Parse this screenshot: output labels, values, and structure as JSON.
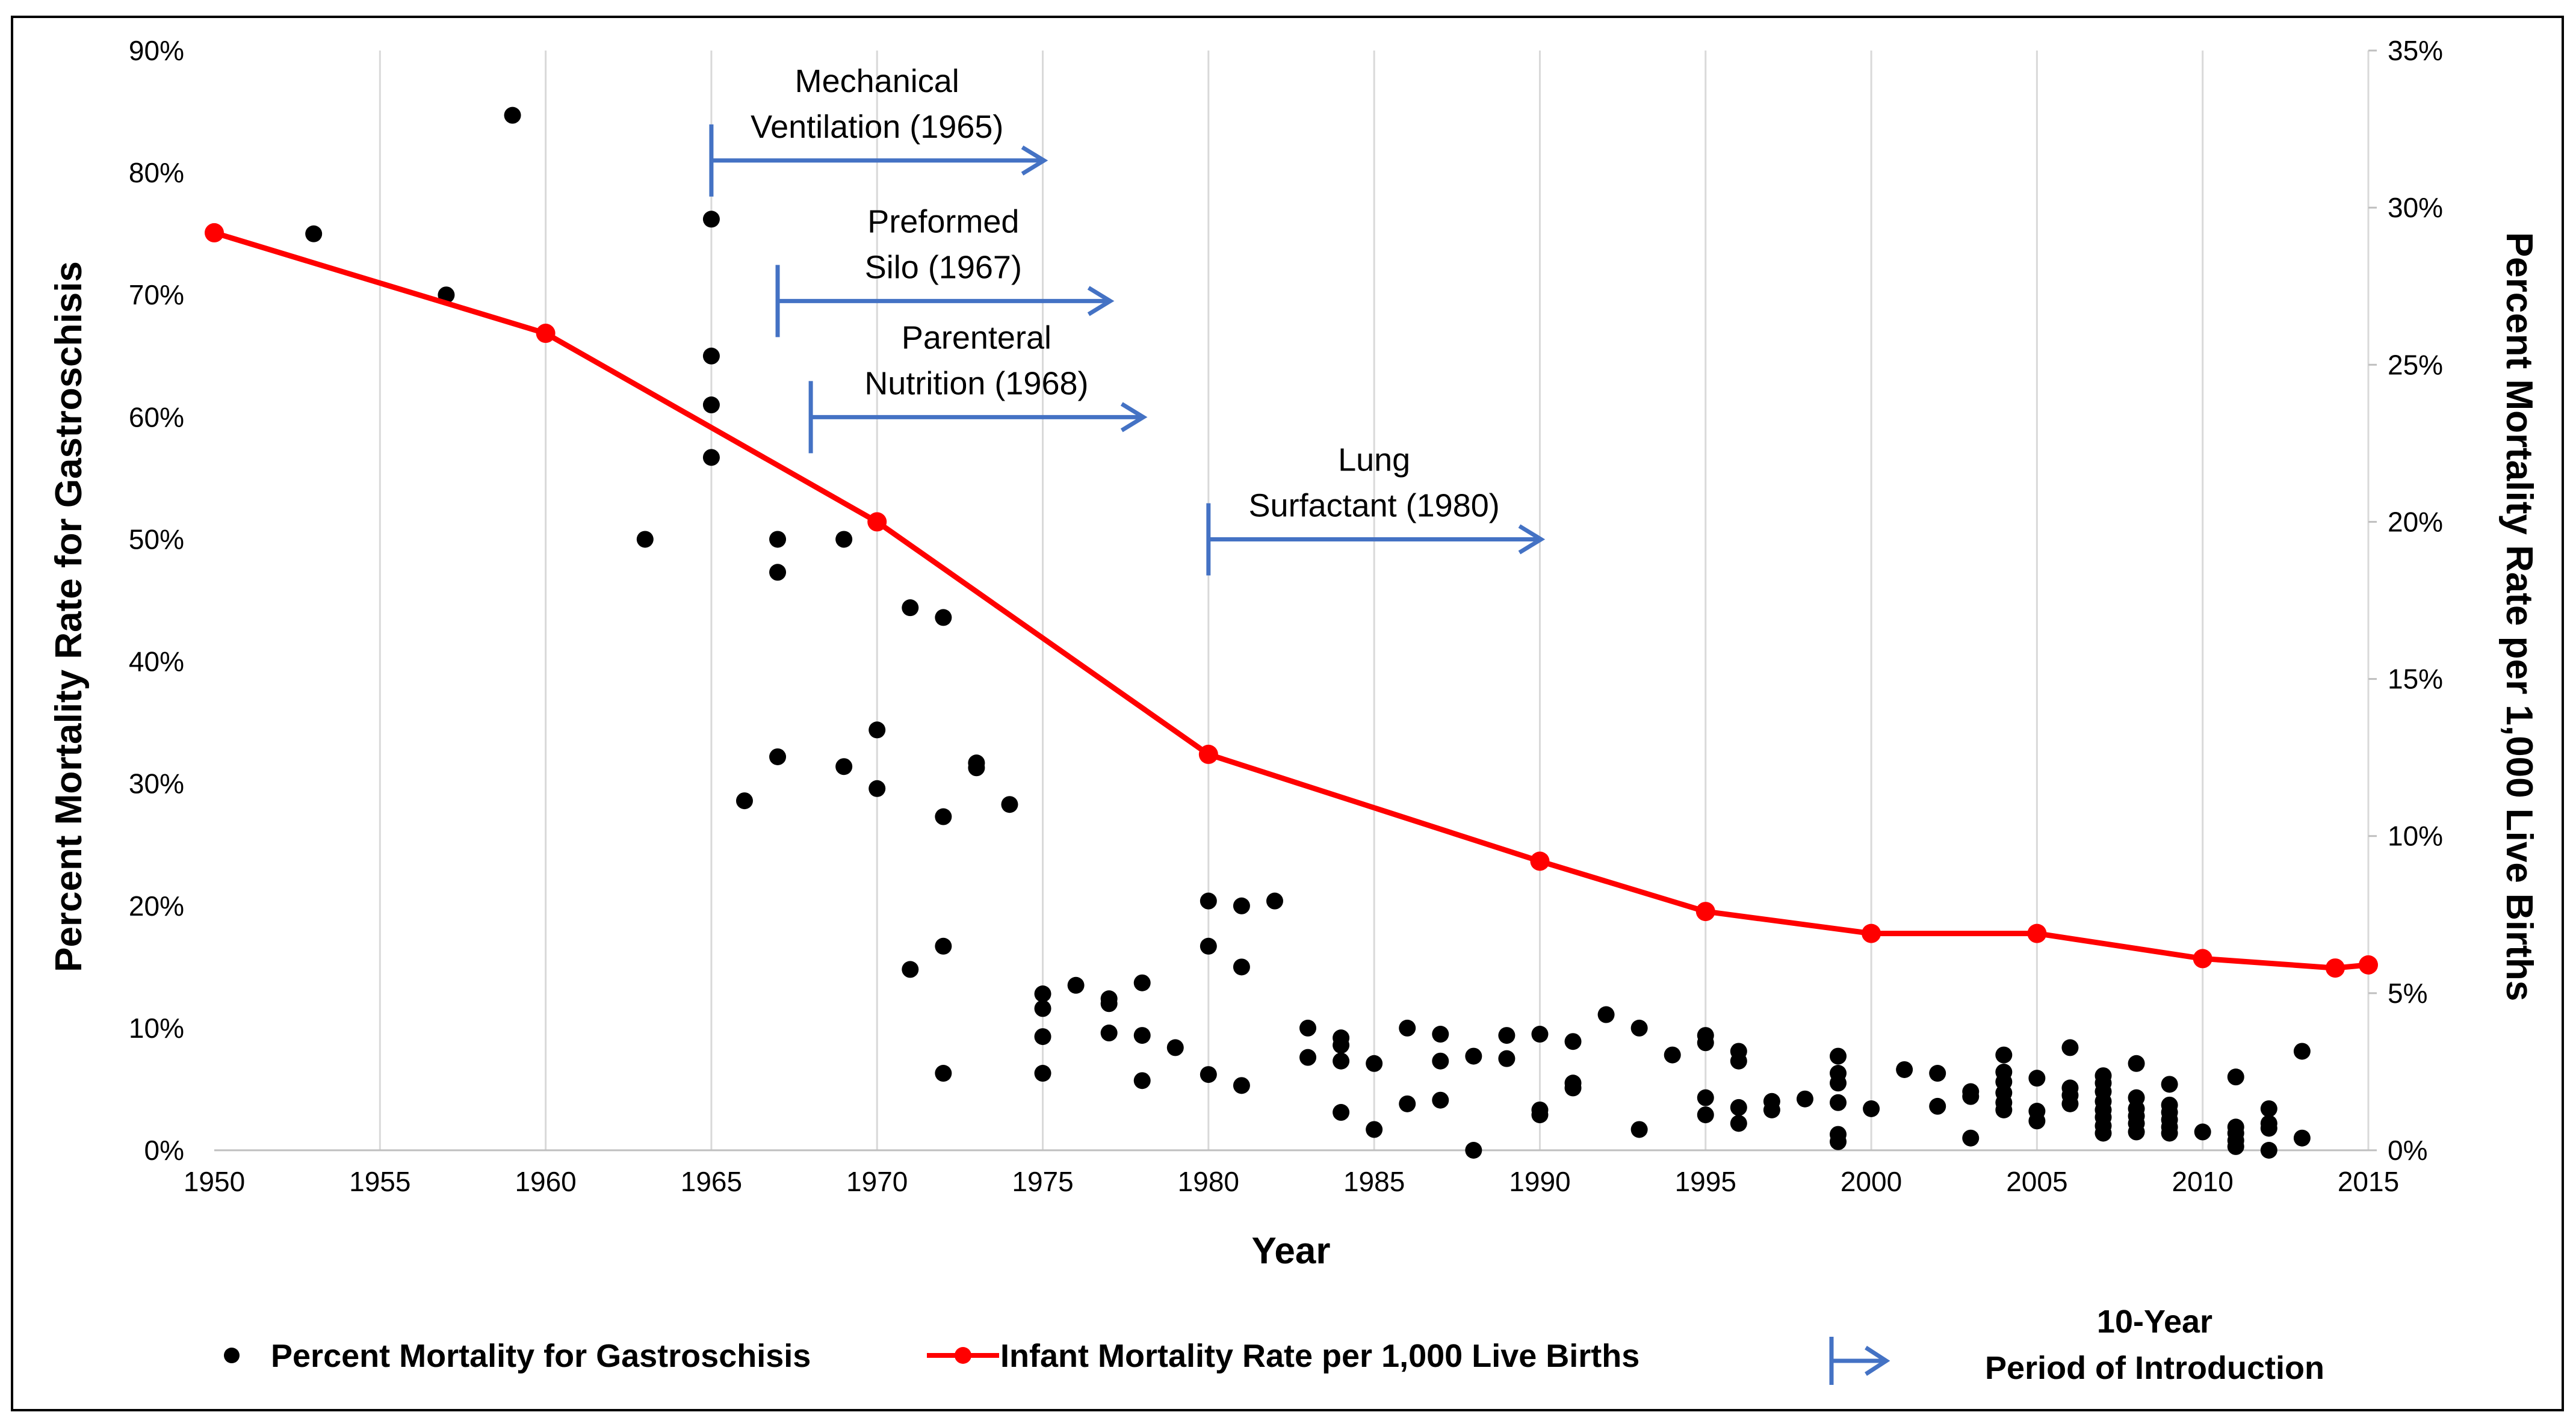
{
  "chart_data": {
    "type": "scatter",
    "title": "",
    "xlabel": "Year",
    "ylabel_left": "Percent Mortality Rate for Gastroschisis",
    "ylabel_right": "Percent Mortality Rate  per 1,000 Live Births",
    "xlim": [
      1950,
      2015
    ],
    "x_ticks": [
      "1950",
      "1955",
      "1960",
      "1965",
      "1970",
      "1975",
      "1980",
      "1985",
      "1990",
      "1995",
      "2000",
      "2005",
      "2010",
      "2015"
    ],
    "ylim_left": [
      0,
      90
    ],
    "y_ticks_left": [
      "0%",
      "10%",
      "20%",
      "30%",
      "40%",
      "50%",
      "60%",
      "70%",
      "80%",
      "90%"
    ],
    "ylim_right": [
      0,
      35
    ],
    "y_ticks_right": [
      "0%",
      "5%",
      "10%",
      "15%",
      "20%",
      "25%",
      "30%",
      "35%"
    ],
    "grid": "vertical",
    "legend_position": "bottom",
    "series": [
      {
        "name": "Percent Mortality for Gastroschisis",
        "type": "scatter",
        "axis": "left",
        "color": "#000000",
        "points": [
          [
            1953,
            75
          ],
          [
            1957,
            70
          ],
          [
            1959,
            84.7
          ],
          [
            1963,
            50
          ],
          [
            1965,
            76.2
          ],
          [
            1965,
            65
          ],
          [
            1965,
            61
          ],
          [
            1965,
            56.7
          ],
          [
            1966,
            28.6
          ],
          [
            1967,
            50
          ],
          [
            1967,
            47.3
          ],
          [
            1967,
            32.2
          ],
          [
            1969,
            50
          ],
          [
            1969,
            31.4
          ],
          [
            1970,
            34.4
          ],
          [
            1970,
            29.6
          ],
          [
            1971,
            44.4
          ],
          [
            1971,
            14.8
          ],
          [
            1972,
            43.6
          ],
          [
            1972,
            27.3
          ],
          [
            1972,
            16.7
          ],
          [
            1972,
            6.3
          ],
          [
            1973,
            31.7
          ],
          [
            1973,
            31.3
          ],
          [
            1974,
            28.3
          ],
          [
            1975,
            12.8
          ],
          [
            1975,
            11.6
          ],
          [
            1975,
            9.3
          ],
          [
            1975,
            6.3
          ],
          [
            1976,
            13.5
          ],
          [
            1977,
            12.4
          ],
          [
            1977,
            12
          ],
          [
            1977,
            9.6
          ],
          [
            1978,
            13.7
          ],
          [
            1978,
            9.4
          ],
          [
            1978,
            5.7
          ],
          [
            1979,
            8.4
          ],
          [
            1980,
            20.4
          ],
          [
            1980,
            16.7
          ],
          [
            1980,
            6.2
          ],
          [
            1981,
            20
          ],
          [
            1981,
            15
          ],
          [
            1981,
            5.3
          ],
          [
            1982,
            20.4
          ],
          [
            1983,
            10
          ],
          [
            1983,
            7.6
          ],
          [
            1984,
            9.2
          ],
          [
            1984,
            8.6
          ],
          [
            1984,
            7.3
          ],
          [
            1984,
            3.1
          ],
          [
            1985,
            7.1
          ],
          [
            1985,
            1.7
          ],
          [
            1986,
            10
          ],
          [
            1986,
            3.8
          ],
          [
            1987,
            9.5
          ],
          [
            1987,
            7.3
          ],
          [
            1987,
            4.1
          ],
          [
            1988,
            7.7
          ],
          [
            1988,
            0
          ],
          [
            1989,
            9.4
          ],
          [
            1989,
            7.5
          ],
          [
            1990,
            9.5
          ],
          [
            1990,
            3.3
          ],
          [
            1990,
            2.9
          ],
          [
            1991,
            8.9
          ],
          [
            1991,
            5.5
          ],
          [
            1991,
            5.1
          ],
          [
            1992,
            11.1
          ],
          [
            1993,
            10
          ],
          [
            1993,
            1.7
          ],
          [
            1994,
            7.8
          ],
          [
            1995,
            9.4
          ],
          [
            1995,
            8.8
          ],
          [
            1995,
            4.3
          ],
          [
            1995,
            2.9
          ],
          [
            1996,
            8.1
          ],
          [
            1996,
            7.3
          ],
          [
            1996,
            3.5
          ],
          [
            1996,
            2.2
          ],
          [
            1997,
            4
          ],
          [
            1997,
            3.3
          ],
          [
            1998,
            4.2
          ],
          [
            1999,
            7.7
          ],
          [
            1999,
            6.3
          ],
          [
            1999,
            5.5
          ],
          [
            1999,
            3.9
          ],
          [
            1999,
            1.3
          ],
          [
            1999,
            0.7
          ],
          [
            2000,
            3.4
          ],
          [
            2001,
            6.6
          ],
          [
            2002,
            6.3
          ],
          [
            2002,
            3.6
          ],
          [
            2003,
            4.8
          ],
          [
            2003,
            4.4
          ],
          [
            2003,
            1
          ],
          [
            2004,
            7.8
          ],
          [
            2004,
            6.4
          ],
          [
            2004,
            5.6
          ],
          [
            2004,
            4.7
          ],
          [
            2004,
            3.9
          ],
          [
            2004,
            3.3
          ],
          [
            2005,
            5.9
          ],
          [
            2005,
            3.2
          ],
          [
            2005,
            2.4
          ],
          [
            2006,
            8.4
          ],
          [
            2006,
            5.1
          ],
          [
            2006,
            4.5
          ],
          [
            2006,
            3.8
          ],
          [
            2007,
            6.1
          ],
          [
            2007,
            5.5
          ],
          [
            2007,
            4.8
          ],
          [
            2007,
            4
          ],
          [
            2007,
            3.3
          ],
          [
            2007,
            2.7
          ],
          [
            2007,
            2
          ],
          [
            2007,
            1.4
          ],
          [
            2008,
            7.1
          ],
          [
            2008,
            4.3
          ],
          [
            2008,
            3.4
          ],
          [
            2008,
            2.8
          ],
          [
            2008,
            2.2
          ],
          [
            2008,
            1.5
          ],
          [
            2009,
            5.4
          ],
          [
            2009,
            3.7
          ],
          [
            2009,
            3.1
          ],
          [
            2009,
            2.5
          ],
          [
            2009,
            1.9
          ],
          [
            2009,
            1.4
          ],
          [
            2010,
            1.5
          ],
          [
            2011,
            6
          ],
          [
            2011,
            1.9
          ],
          [
            2011,
            1.4
          ],
          [
            2011,
            0.8
          ],
          [
            2011,
            0.3
          ],
          [
            2012,
            3.4
          ],
          [
            2012,
            2.2
          ],
          [
            2012,
            1.8
          ],
          [
            2012,
            0
          ],
          [
            2013,
            8.1
          ],
          [
            2013,
            1
          ]
        ]
      },
      {
        "name": "Infant Mortality Rate per 1,000 Live Births",
        "type": "line",
        "axis": "right",
        "color": "#FF0000",
        "points": [
          [
            1950,
            29.2
          ],
          [
            1960,
            26
          ],
          [
            1970,
            20
          ],
          [
            1980,
            12.6
          ],
          [
            1990,
            9.2
          ],
          [
            1995,
            7.6
          ],
          [
            2000,
            6.9
          ],
          [
            2005,
            6.9
          ],
          [
            2010,
            6.1
          ],
          [
            2014,
            5.8
          ],
          [
            2015,
            5.9
          ]
        ]
      }
    ],
    "introductions": {
      "color": "#4472C4",
      "period_years": 10,
      "items": [
        {
          "label_lines": [
            "Mechanical",
            "Ventilation (1965)"
          ],
          "start": 1965,
          "end": 1975,
          "level": 81
        },
        {
          "label_lines": [
            "Preformed",
            "Silo (1967)"
          ],
          "start": 1967,
          "end": 1977,
          "level": 69.5
        },
        {
          "label_lines": [
            "Parenteral",
            "Nutrition (1968)"
          ],
          "start": 1968,
          "end": 1978,
          "level": 60
        },
        {
          "label_lines": [
            "Lung",
            "Surfactant (1980)"
          ],
          "start": 1980,
          "end": 1990,
          "level": 50
        }
      ]
    },
    "legend": {
      "scatter_label": "Percent Mortality for Gastroschisis",
      "line_label": "Infant Mortality Rate per 1,000 Live Births",
      "arrow_label_lines": [
        "10-Year",
        "Period of Introduction"
      ]
    }
  }
}
